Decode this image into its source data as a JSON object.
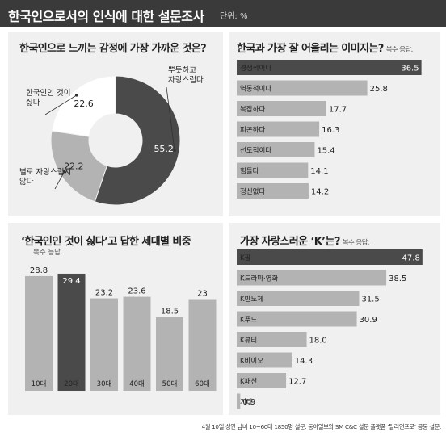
{
  "header": {
    "title": "한국인으로서의 인식에 대한 설문조사",
    "unit": "단위: %"
  },
  "footer": "4월 10일 성인 남녀 10~60대 1850명 설문. 동아일보와 SM C&C 설문 플랫폼 ‘틸리언프로’ 공동 설문.",
  "chart_data": [
    {
      "type": "pie",
      "title": "한국인으로 느끼는 감정에 가장 가까운 것은?",
      "categories": [
        "뿌듯하고 자랑스럽다",
        "별로 자랑스럽지 않다",
        "한국인인 것이 싫다"
      ],
      "values": [
        55.2,
        22.2,
        22.6
      ],
      "colors": [
        "#4a4a4a",
        "#b3b3b3",
        "#ffffff"
      ]
    },
    {
      "type": "bar",
      "orientation": "horizontal",
      "title": "한국과 가장 잘 어울리는 이미지는?",
      "note": "복수 응답.",
      "categories": [
        "경쟁적이다",
        "역동적이다",
        "복잡하다",
        "피곤하다",
        "선도적이다",
        "힘들다",
        "정신없다"
      ],
      "values": [
        36.5,
        25.8,
        17.7,
        16.3,
        15.4,
        14.1,
        14.2
      ],
      "highlight_index": 0,
      "xlim": [
        0,
        38
      ]
    },
    {
      "type": "bar",
      "orientation": "vertical",
      "title": "‘한국인인 것이 싫다’고 답한 세대별 비중",
      "note": "복수 응답.",
      "categories": [
        "10대",
        "20대",
        "30대",
        "40대",
        "50대",
        "60대"
      ],
      "values": [
        28.8,
        29.4,
        23.2,
        23.6,
        18.5,
        23
      ],
      "highlight_index": 1,
      "ylim": [
        0,
        30
      ]
    },
    {
      "type": "bar",
      "orientation": "horizontal",
      "title": "가장 자랑스러운 ‘K’는?",
      "note": "복수 응답.",
      "categories": [
        "K팝",
        "K드라마·영화",
        "K반도체",
        "K푸드",
        "K뷰티",
        "K바이오",
        "K패션",
        "기타"
      ],
      "values": [
        47.8,
        38.5,
        31.5,
        30.9,
        18.0,
        14.3,
        12.7,
        0.9
      ],
      "value_labels": [
        "47.8",
        "38.5",
        "31.5",
        "30.9",
        "18.0",
        "14.3",
        "12.7",
        "0.9"
      ],
      "highlight_index": 0,
      "xlim": [
        0,
        49.5
      ]
    }
  ]
}
